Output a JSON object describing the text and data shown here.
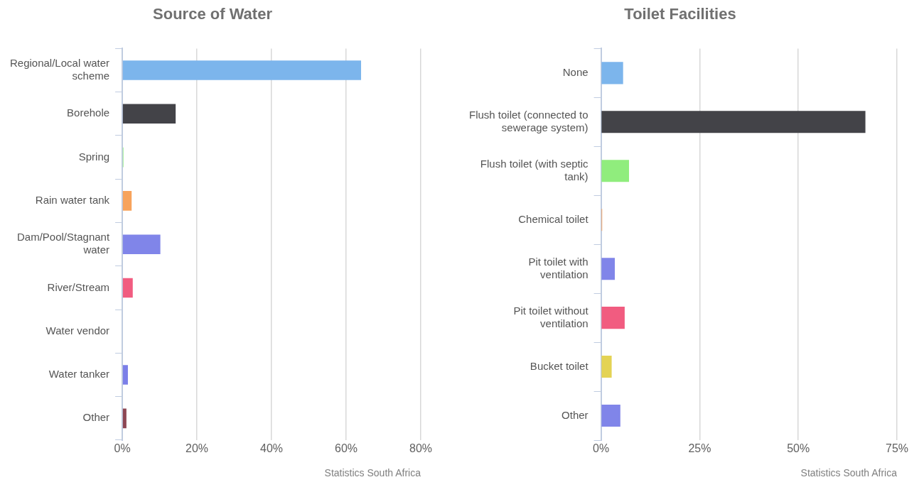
{
  "chart_data": [
    {
      "type": "bar",
      "orientation": "horizontal",
      "title": "Source of Water",
      "categories": [
        "Regional/Local water scheme",
        "Borehole",
        "Spring",
        "Rain water tank",
        "Dam/Pool/Stagnant water",
        "River/Stream",
        "Water vendor",
        "Water tanker",
        "Other"
      ],
      "values": [
        64,
        14.3,
        0.3,
        2.5,
        10.2,
        2.8,
        0,
        1.5,
        1.1
      ],
      "colors": [
        "#7cb5ec",
        "#434348",
        "#90ed7d",
        "#f7a35c",
        "#8085e9",
        "#f15c80",
        "#e4d354",
        "#7b7fe8",
        "#8d4653"
      ],
      "xlim": [
        0,
        80
      ],
      "xticks": [
        {
          "value": 0,
          "label": "0%"
        },
        {
          "value": 20,
          "label": "20%"
        },
        {
          "value": 40,
          "label": "40%"
        },
        {
          "value": 60,
          "label": "60%"
        },
        {
          "value": 80,
          "label": "80%"
        }
      ],
      "grid": "x",
      "annotations": [
        "Statistics South Africa"
      ]
    },
    {
      "type": "bar",
      "orientation": "horizontal",
      "title": "Toilet Facilities",
      "categories": [
        "None",
        "Flush toilet (connected to sewerage system)",
        "Flush toilet (with septic tank)",
        "Chemical toilet",
        "Pit toilet with ventilation",
        "Pit toilet without ventilation",
        "Bucket toilet",
        "Other"
      ],
      "values": [
        5.6,
        67,
        7.1,
        0.3,
        3.5,
        6,
        2.7,
        4.9
      ],
      "colors": [
        "#7cb5ec",
        "#434348",
        "#90ed7d",
        "#f7a35c",
        "#8085e9",
        "#f15c80",
        "#e4d354",
        "#8085e9"
      ],
      "xlim": [
        0,
        75
      ],
      "xticks": [
        {
          "value": 0,
          "label": "0%"
        },
        {
          "value": 25,
          "label": "25%"
        },
        {
          "value": 50,
          "label": "50%"
        },
        {
          "value": 75,
          "label": "75%"
        }
      ],
      "grid": "x",
      "annotations": [
        "Statistics South Africa"
      ]
    }
  ]
}
